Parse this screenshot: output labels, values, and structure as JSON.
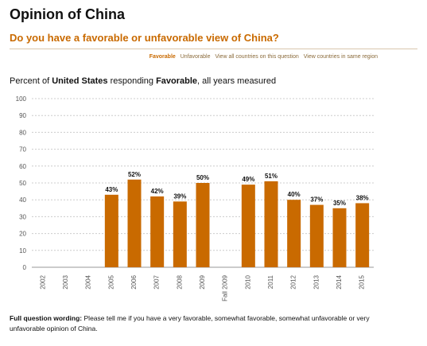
{
  "page": {
    "title": "Opinion of China",
    "question": "Do you have a favorable or unfavorable view of China?"
  },
  "links": {
    "favorable": "Favorable",
    "unfavorable": "Unfavorable",
    "all_countries": "View all countries on this question",
    "same_region": "View countries in same region"
  },
  "heading": {
    "prefix": "Percent of",
    "country": "United States",
    "middle": "responding",
    "response": "Favorable",
    "suffix": ", all years measured"
  },
  "footer": {
    "label": "Full question wording:",
    "text": "Please tell me if you have a very favorable, somewhat favorable, somewhat unfavorable or very unfavorable opinion of China."
  },
  "colors": {
    "bar": "#c96a00",
    "accent": "#c96a00",
    "grid": "#cccccc"
  },
  "chart_data": {
    "type": "bar",
    "categories": [
      "2002",
      "2003",
      "2004",
      "2005",
      "2006",
      "2007",
      "2008",
      "2009",
      "Fall 2009",
      "2010",
      "2011",
      "2012",
      "2013",
      "2014",
      "2015"
    ],
    "values": [
      null,
      null,
      null,
      43,
      52,
      42,
      39,
      50,
      null,
      49,
      51,
      40,
      37,
      35,
      38
    ],
    "data_labels": [
      "",
      "",
      "",
      "43%",
      "52%",
      "42%",
      "39%",
      "50%",
      "",
      "49%",
      "51%",
      "40%",
      "37%",
      "35%",
      "38%"
    ],
    "yticks": [
      0,
      10,
      20,
      30,
      40,
      50,
      60,
      70,
      80,
      90,
      100
    ],
    "ylim": [
      0,
      100
    ],
    "grid": true
  }
}
